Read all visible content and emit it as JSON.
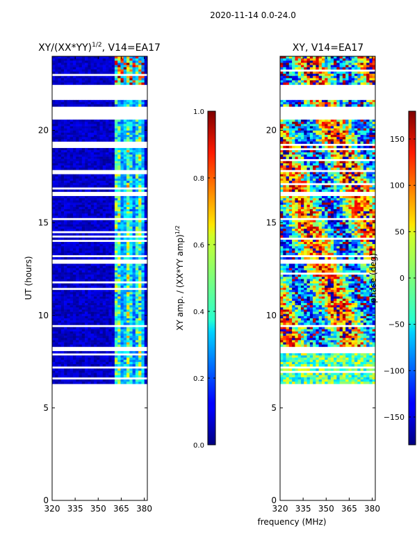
{
  "chart_data": {
    "type": "heatmap",
    "suptitle": "2020-11-14 0.0-24.0",
    "xlabel": "frequency (MHz)",
    "panels": [
      {
        "title_main": "XY/(XX*YY)",
        "title_exp": "1/2",
        "title_tail": ", V14=EA17",
        "ylabel": "UT (hours)",
        "xlim": [
          320,
          382
        ],
        "ylim": [
          0,
          24
        ],
        "xticks": [
          320,
          335,
          350,
          365,
          380
        ],
        "yticks": [
          0,
          5,
          10,
          15,
          20
        ],
        "colormap": "jet",
        "data_range_hours": [
          6.3,
          24.0
        ],
        "active_channel_range_mhz": [
          360,
          380
        ],
        "colorbar": {
          "label_main": "XY amp. / (XX*YY amp)",
          "label_exp": "1/2",
          "range": [
            0.0,
            1.0
          ],
          "ticks": [
            "0.0",
            "0.2",
            "0.4",
            "0.6",
            "0.8",
            "1.0"
          ]
        }
      },
      {
        "title_main": "XY, V14=EA17",
        "ylabel": "",
        "xlim": [
          320,
          382
        ],
        "ylim": [
          0,
          24
        ],
        "xticks": [
          320,
          335,
          350,
          365,
          380
        ],
        "yticks": [
          0,
          5,
          10,
          15,
          20
        ],
        "colormap": "jet",
        "data_range_hours": [
          6.3,
          24.0
        ],
        "colorbar": {
          "label_main": "phase (deg)",
          "range": [
            -180,
            180
          ],
          "ticks": [
            "−150",
            "−100",
            "−50",
            "0",
            "50",
            "100",
            "150"
          ]
        }
      }
    ],
    "flagged_gaps_hours": [
      [
        22.5,
        21.6
      ],
      [
        21.3,
        20.6
      ],
      [
        7.3,
        7.15
      ],
      [
        8.3,
        8.1
      ],
      [
        9.5,
        9.35
      ],
      [
        11.55,
        11.45
      ],
      [
        13.0,
        12.8
      ],
      [
        13.3,
        13.2
      ],
      [
        15.3,
        15.1
      ],
      [
        16.7,
        16.5
      ],
      [
        17.9,
        17.8
      ],
      [
        19.3,
        19.2
      ]
    ]
  }
}
